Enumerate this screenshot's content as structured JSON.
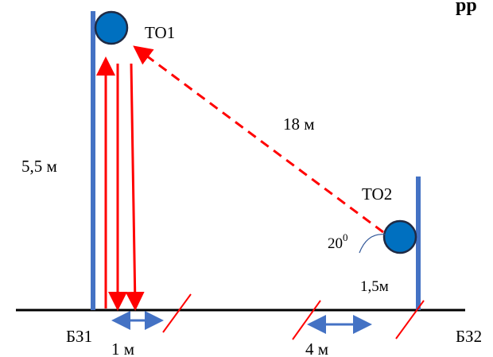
{
  "labels": {
    "to1": "ТО1",
    "to2": "ТО2",
    "height_left": "5,5 м",
    "diagonal": "18 м",
    "angle_value": "20",
    "angle_degree": "0",
    "height_right": "1,5м",
    "bz1": "БЗ1",
    "bz2": "БЗ2",
    "dist_1": "1 м",
    "dist_4": "4 м",
    "title_fragment": "рр"
  },
  "colors": {
    "post": "#4472C4",
    "ball_fill": "#0070C0",
    "ball_stroke": "#1F2A44",
    "ray": "#FF0000",
    "dim_arrow": "#4472C4",
    "ground": "#000000",
    "angle_arc": "#2F5597"
  }
}
